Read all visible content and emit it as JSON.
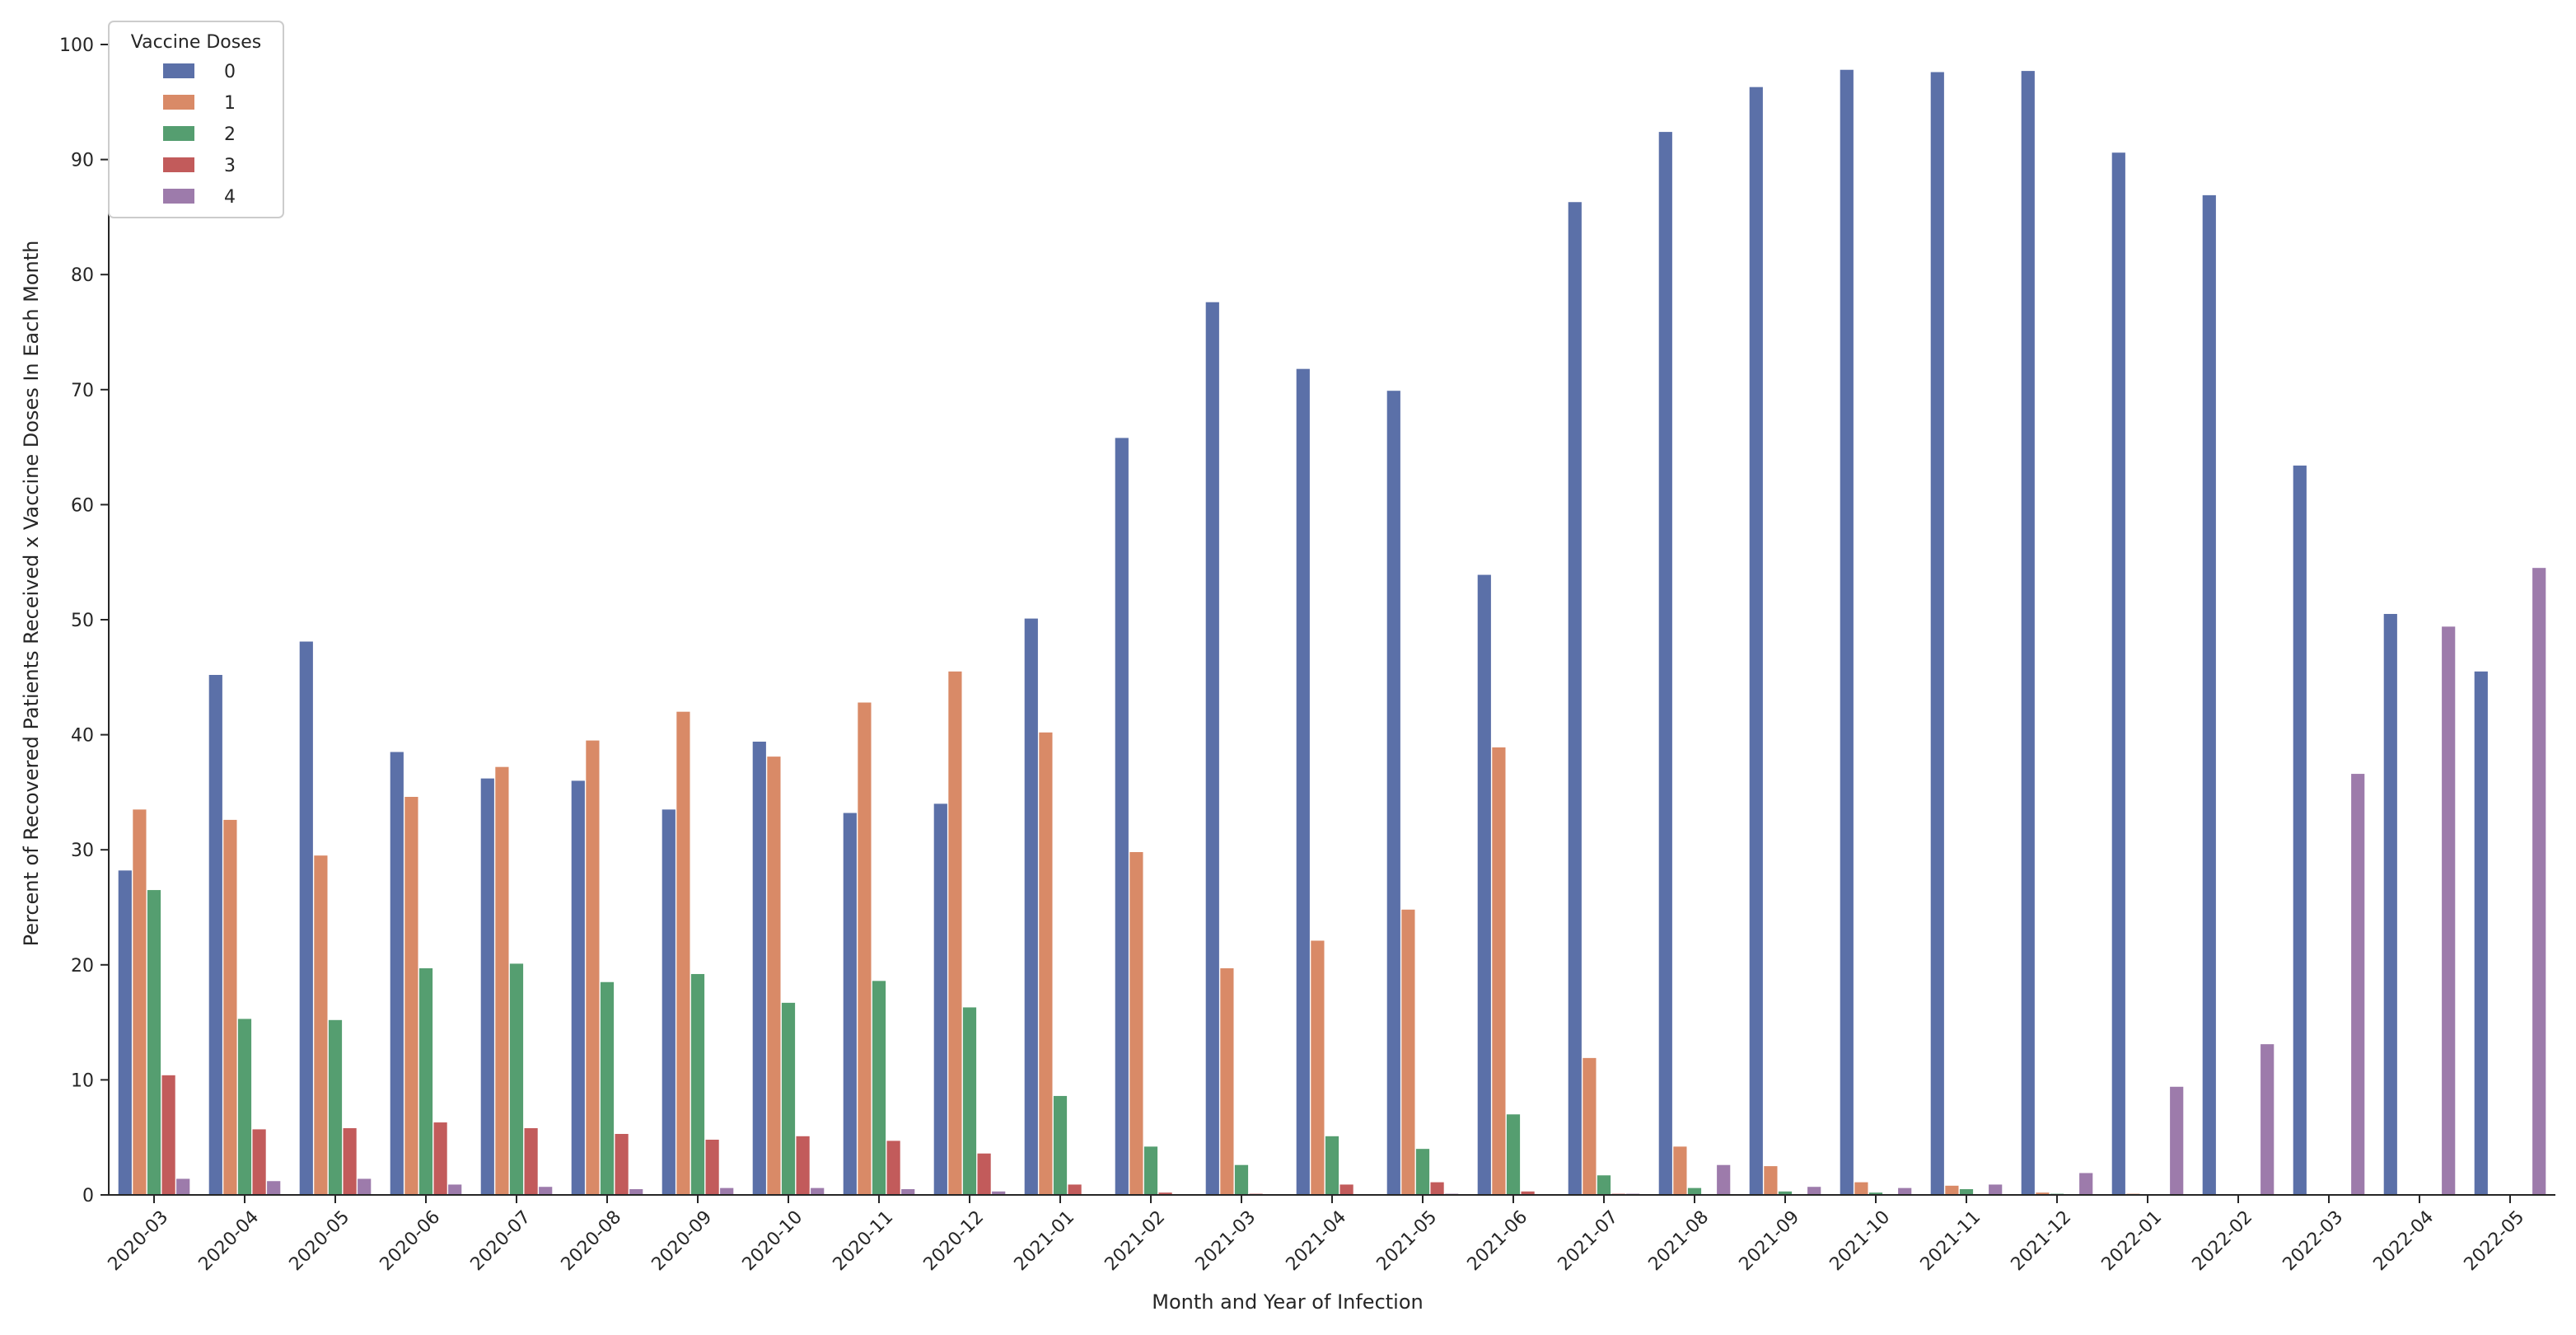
{
  "chart_data": {
    "type": "bar",
    "xlabel": "Month and Year of Infection",
    "ylabel": "Percent of Recovered Patients Received x Vaccine Doses In Each Month",
    "ylim": [
      0,
      100
    ],
    "yticks": [
      0,
      10,
      20,
      30,
      40,
      50,
      60,
      70,
      80,
      90,
      100
    ],
    "grid": false,
    "legend": {
      "title": "Vaccine Doses",
      "placement": "top-left"
    },
    "categories": [
      "2020-03",
      "2020-04",
      "2020-05",
      "2020-06",
      "2020-07",
      "2020-08",
      "2020-09",
      "2020-10",
      "2020-11",
      "2020-12",
      "2021-01",
      "2021-02",
      "2021-03",
      "2021-04",
      "2021-05",
      "2021-06",
      "2021-07",
      "2021-08",
      "2021-09",
      "2021-10",
      "2021-11",
      "2021-12",
      "2022-01",
      "2022-02",
      "2022-03",
      "2022-04",
      "2022-05"
    ],
    "series": [
      {
        "name": "0",
        "color": "#5b70a8",
        "values": [
          28.2,
          45.2,
          48.1,
          38.5,
          36.2,
          36.0,
          33.5,
          39.4,
          33.2,
          34.0,
          50.1,
          65.8,
          77.6,
          71.8,
          69.9,
          53.9,
          86.3,
          92.4,
          96.3,
          97.8,
          97.6,
          97.7,
          90.6,
          86.9,
          63.4,
          50.5,
          45.5
        ]
      },
      {
        "name": "1",
        "color": "#d98a67",
        "values": [
          33.5,
          32.6,
          29.5,
          34.6,
          37.2,
          39.5,
          42.0,
          38.1,
          42.8,
          45.5,
          40.2,
          29.8,
          19.7,
          22.1,
          24.8,
          38.9,
          11.9,
          4.2,
          2.5,
          1.1,
          0.8,
          0.2,
          0.1,
          0.0,
          0.0,
          0.0,
          0.0
        ]
      },
      {
        "name": "2",
        "color": "#559e70",
        "values": [
          26.5,
          15.3,
          15.2,
          19.7,
          20.1,
          18.5,
          19.2,
          16.7,
          18.6,
          16.3,
          8.6,
          4.2,
          2.6,
          5.1,
          4.0,
          7.0,
          1.7,
          0.6,
          0.3,
          0.2,
          0.5,
          0.1,
          0.0,
          0.0,
          0.0,
          0.0,
          0.0
        ]
      },
      {
        "name": "3",
        "color": "#c25b5b",
        "values": [
          10.4,
          5.7,
          5.8,
          6.3,
          5.8,
          5.3,
          4.8,
          5.1,
          4.7,
          3.6,
          0.9,
          0.2,
          0.1,
          0.9,
          1.1,
          0.3,
          0.1,
          0.0,
          0.0,
          0.0,
          0.0,
          0.0,
          0.0,
          0.0,
          0.0,
          0.0,
          0.0
        ]
      },
      {
        "name": "4",
        "color": "#9d7bab",
        "values": [
          1.4,
          1.2,
          1.4,
          0.9,
          0.7,
          0.5,
          0.6,
          0.6,
          0.5,
          0.3,
          0.0,
          0.0,
          0.0,
          0.0,
          0.1,
          0.0,
          0.1,
          2.6,
          0.7,
          0.6,
          0.9,
          1.9,
          9.4,
          13.1,
          36.6,
          49.4,
          54.5
        ]
      }
    ]
  }
}
